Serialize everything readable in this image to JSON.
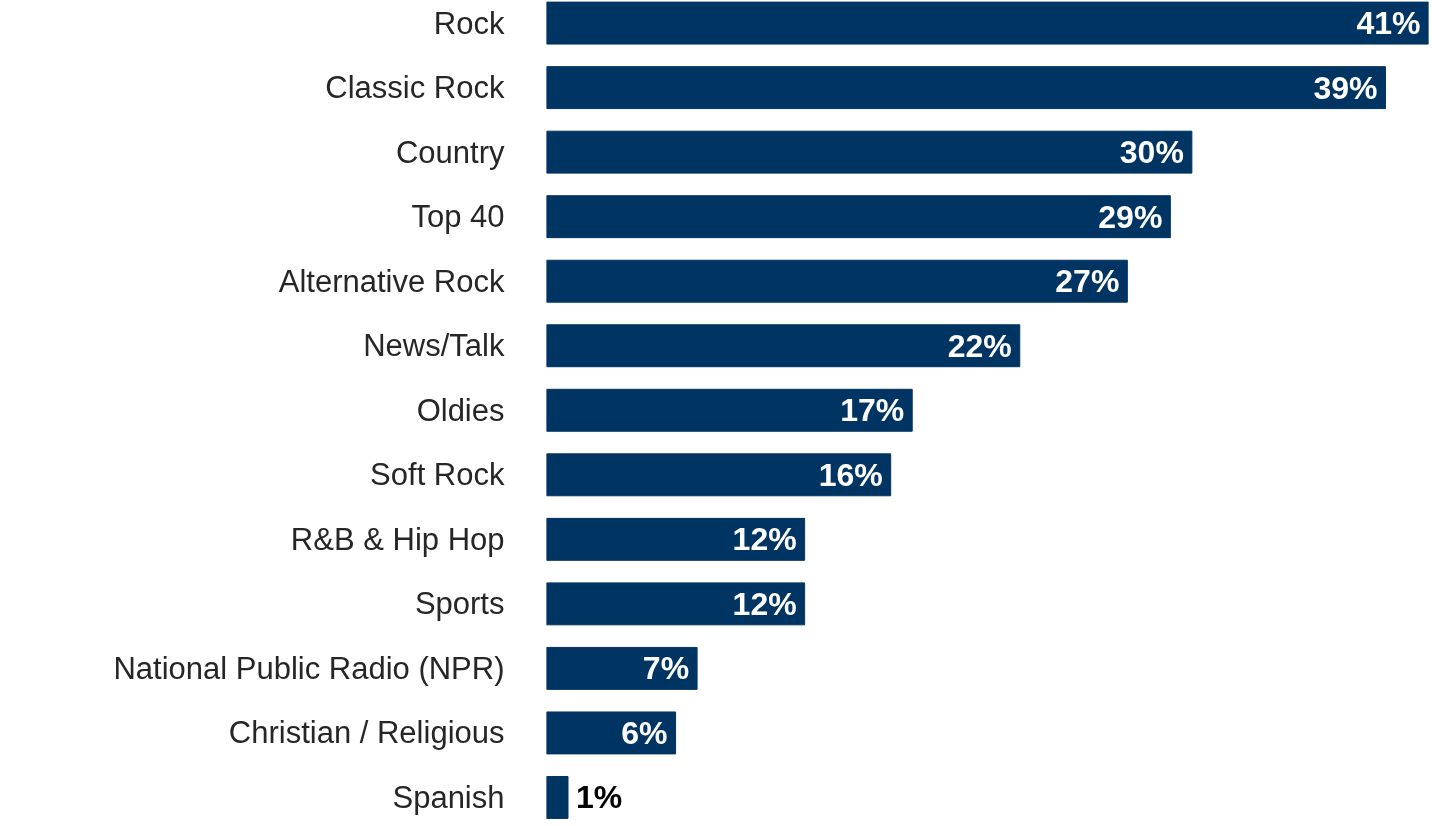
{
  "chart_data": {
    "type": "bar",
    "orientation": "horizontal",
    "categories": [
      "Rock",
      "Classic Rock",
      "Country",
      "Top 40",
      "Alternative Rock",
      "News/Talk",
      "Oldies",
      "Soft Rock",
      "R&B & Hip Hop",
      "Sports",
      "National Public Radio (NPR)",
      "Christian / Religious",
      "Spanish"
    ],
    "values": [
      41,
      39,
      30,
      29,
      27,
      22,
      17,
      16,
      12,
      12,
      7,
      6,
      1
    ],
    "value_labels": [
      "41%",
      "39%",
      "30%",
      "29%",
      "27%",
      "22%",
      "17%",
      "16%",
      "12%",
      "12%",
      "7%",
      "6%",
      "1%"
    ],
    "color": "#003462",
    "xlim": [
      0,
      41
    ],
    "tick_labels": "y"
  }
}
